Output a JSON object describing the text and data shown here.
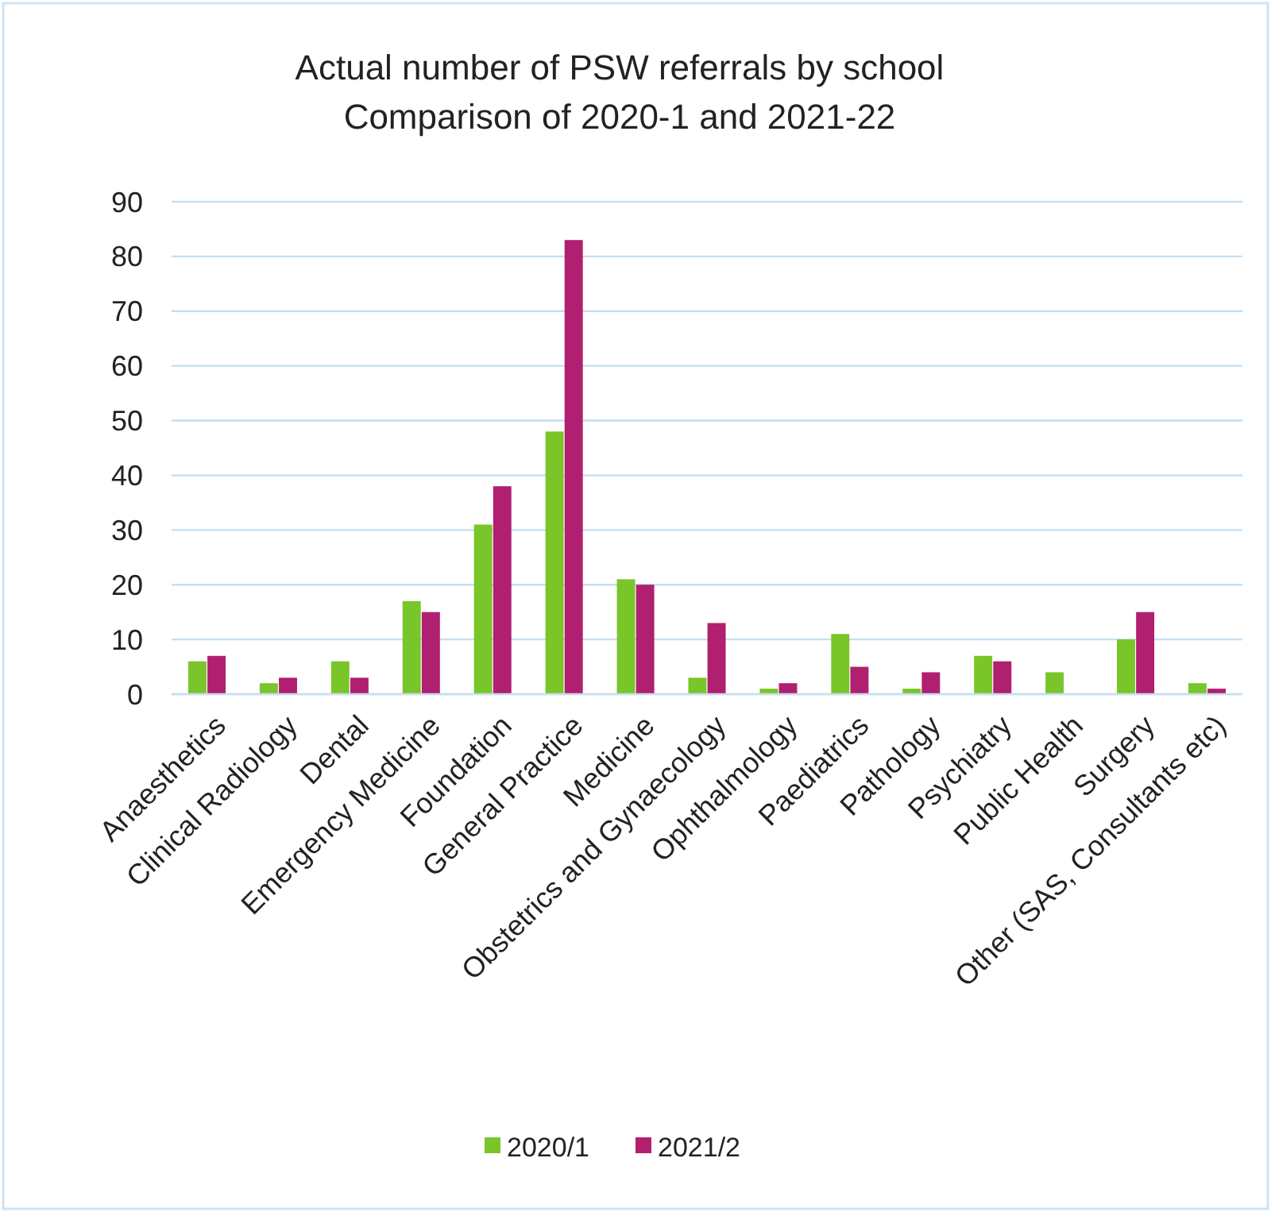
{
  "chart_data": {
    "type": "bar",
    "title": "Actual number of PSW referrals by school\nComparison of 2020-1 and 2021-22",
    "categories": [
      "Anaesthetics",
      "Clinical Radiology",
      "Dental",
      "Emergency Medicine",
      "Foundation",
      "General Practice",
      "Medicine",
      "Obstetrics and Gynaecology",
      "Ophthalmology",
      "Paediatrics",
      "Pathology",
      "Psychiatry",
      "Public Health",
      "Surgery",
      "Other (SAS, Consultants etc)"
    ],
    "series": [
      {
        "name": "2020/1",
        "color": "#7ac52a",
        "values": [
          6,
          2,
          6,
          17,
          31,
          48,
          21,
          3,
          1,
          11,
          1,
          7,
          4,
          10,
          2
        ]
      },
      {
        "name": "2021/2",
        "color": "#b01f70",
        "values": [
          7,
          3,
          3,
          15,
          38,
          83,
          20,
          13,
          2,
          5,
          4,
          6,
          0,
          15,
          1
        ]
      }
    ],
    "ylim": [
      0,
      90
    ],
    "yticks": [
      0,
      10,
      20,
      30,
      40,
      50,
      60,
      70,
      80,
      90
    ],
    "grid": "y",
    "legend": "bottom"
  }
}
